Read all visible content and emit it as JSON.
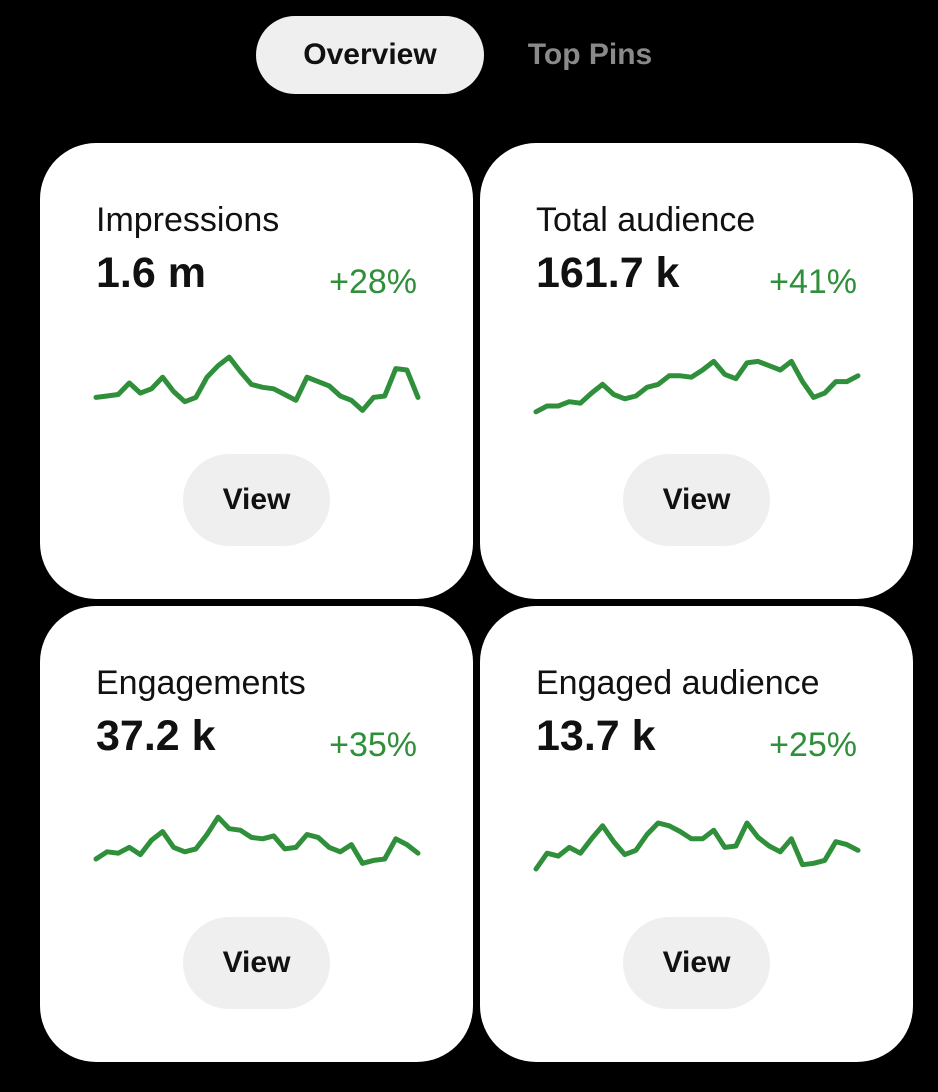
{
  "tabs": [
    {
      "label": "Overview",
      "active": true
    },
    {
      "label": "Top Pins",
      "active": false
    }
  ],
  "colors": {
    "background": "#000000",
    "card": "#ffffff",
    "positive": "#2f8f3a",
    "button": "#efefef"
  },
  "cards": [
    {
      "label": "Impressions",
      "value": "1.6 m",
      "change": "+28%",
      "button_label": "View",
      "trend": [
        0.3,
        0.32,
        0.34,
        0.5,
        0.36,
        0.42,
        0.58,
        0.38,
        0.24,
        0.3,
        0.58,
        0.74,
        0.86,
        0.66,
        0.48,
        0.44,
        0.42,
        0.34,
        0.26,
        0.58,
        0.52,
        0.46,
        0.32,
        0.26,
        0.12,
        0.3,
        0.32,
        0.7,
        0.68,
        0.3
      ]
    },
    {
      "label": "Total audience",
      "value": "161.7 k",
      "change": "+41%",
      "button_label": "View",
      "trend": [
        0.1,
        0.18,
        0.18,
        0.24,
        0.22,
        0.36,
        0.48,
        0.34,
        0.28,
        0.32,
        0.44,
        0.48,
        0.6,
        0.6,
        0.58,
        0.68,
        0.8,
        0.62,
        0.56,
        0.78,
        0.8,
        0.74,
        0.68,
        0.8,
        0.52,
        0.3,
        0.36,
        0.52,
        0.52,
        0.6
      ]
    },
    {
      "label": "Engagements",
      "value": "37.2 k",
      "change": "+35%",
      "button_label": "View",
      "trend": [
        0.32,
        0.42,
        0.4,
        0.48,
        0.38,
        0.58,
        0.7,
        0.48,
        0.42,
        0.46,
        0.66,
        0.9,
        0.74,
        0.72,
        0.62,
        0.6,
        0.64,
        0.46,
        0.48,
        0.66,
        0.62,
        0.48,
        0.42,
        0.52,
        0.26,
        0.3,
        0.32,
        0.6,
        0.52,
        0.4
      ]
    },
    {
      "label": "Engaged audience",
      "value": "13.7 k",
      "change": "+25%",
      "button_label": "View",
      "trend": [
        0.18,
        0.4,
        0.36,
        0.48,
        0.4,
        0.6,
        0.78,
        0.56,
        0.38,
        0.44,
        0.66,
        0.82,
        0.78,
        0.7,
        0.6,
        0.6,
        0.72,
        0.48,
        0.5,
        0.82,
        0.62,
        0.5,
        0.42,
        0.6,
        0.24,
        0.26,
        0.3,
        0.56,
        0.52,
        0.44
      ]
    }
  ]
}
